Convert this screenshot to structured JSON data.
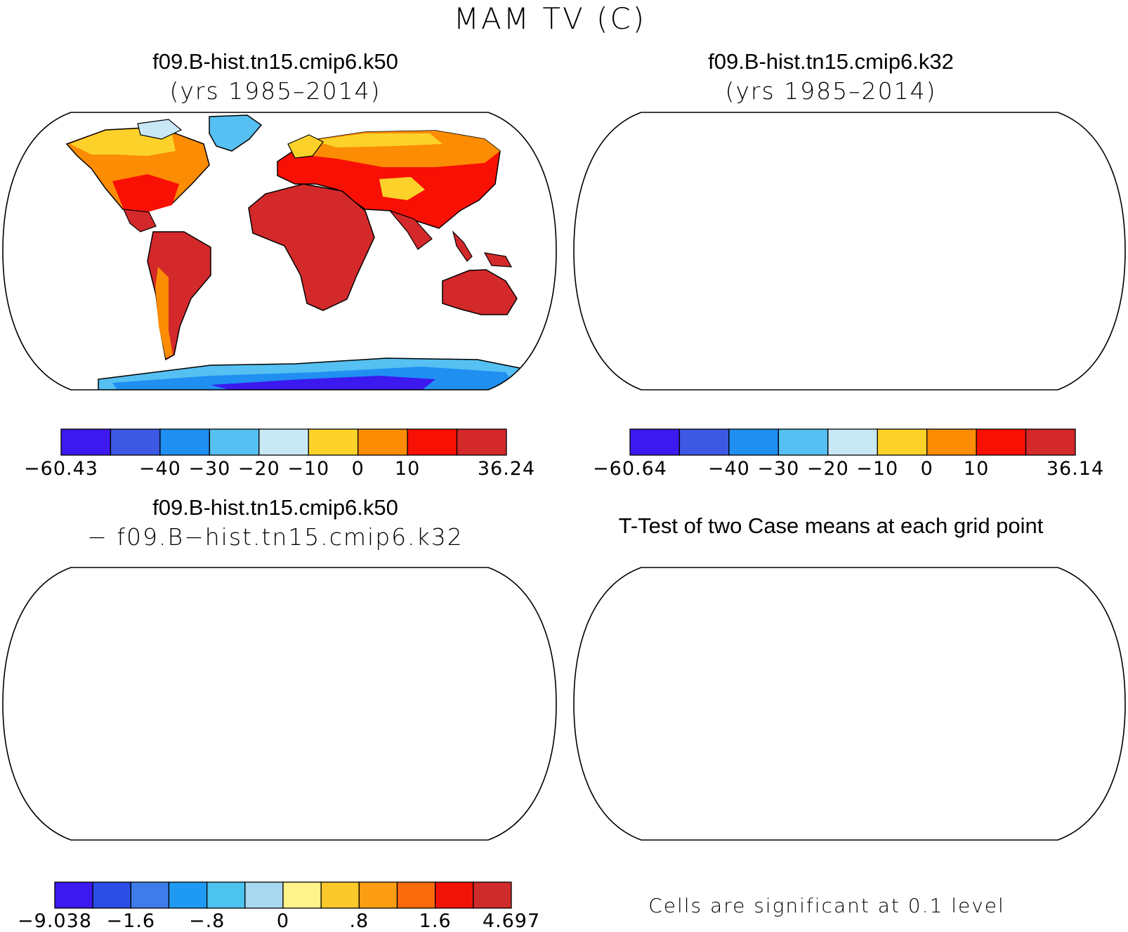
{
  "figure": {
    "title": "MAM TV (C)"
  },
  "panels": [
    {
      "id": "case1",
      "title": "f09.B-hist.tn15.cmip6.k50",
      "subtitle": "(yrs 1985–2014)",
      "colorbar": {
        "colors": [
          "#3c19ee",
          "#3d59e3",
          "#1f8ff2",
          "#55c0f1",
          "#c9e8f6",
          "#fcd22a",
          "#fc8c03",
          "#f91004",
          "#d3292b"
        ],
        "labels": [
          "−60.43",
          "−40",
          "−30",
          "−20",
          "−10",
          "0",
          "10",
          "36.24"
        ]
      }
    },
    {
      "id": "case2",
      "title": "f09.B-hist.tn15.cmip6.k32",
      "subtitle": "(yrs 1985–2014)",
      "colorbar": {
        "colors": [
          "#3c19ee",
          "#3d59e3",
          "#1f8ff2",
          "#55c0f1",
          "#c9e8f6",
          "#fcd22a",
          "#fc8c03",
          "#f91004",
          "#d3292b"
        ],
        "labels": [
          "−60.64",
          "−40",
          "−30",
          "−20",
          "−10",
          "0",
          "10",
          "36.14"
        ]
      }
    },
    {
      "id": "diff",
      "title": "f09.B-hist.tn15.cmip6.k50",
      "subtitle": "− f09.B−hist.tn15.cmip6.k32",
      "colorbar": {
        "colors": [
          "#3c19ee",
          "#2b4fe6",
          "#3e7de9",
          "#1f9af2",
          "#4dc3f0",
          "#a8d8f0",
          "#fdf38a",
          "#fcc92a",
          "#fd9d13",
          "#fc6a0e",
          "#f21307",
          "#d02b2b"
        ],
        "labels": [
          "−9.038",
          "−1.6",
          "−.8",
          "0",
          ".8",
          "1.6",
          "4.697"
        ]
      }
    },
    {
      "id": "ttest",
      "title": "T-Test of two Case means at each grid point",
      "footnote": "Cells are significant at 0.1 level"
    }
  ],
  "colors": {
    "ocean": "#ffffff",
    "outline": "#000000",
    "significant": "#f50a06"
  }
}
